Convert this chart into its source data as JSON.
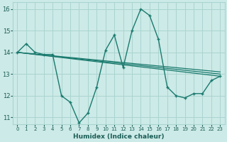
{
  "xlabel": "Humidex (Indice chaleur)",
  "xlim": [
    -0.5,
    23.5
  ],
  "ylim": [
    10.7,
    16.3
  ],
  "yticks": [
    11,
    12,
    13,
    14,
    15,
    16
  ],
  "xticks": [
    0,
    1,
    2,
    3,
    4,
    5,
    6,
    7,
    8,
    9,
    10,
    11,
    12,
    13,
    14,
    15,
    16,
    17,
    18,
    19,
    20,
    21,
    22,
    23
  ],
  "bg_color": "#cceae7",
  "grid_color": "#aad4d0",
  "line_color": "#1a7a6e",
  "main_line": {
    "x": [
      0,
      1,
      2,
      3,
      4,
      5,
      6,
      7,
      8,
      9,
      10,
      11,
      12,
      13,
      14,
      15,
      16,
      17,
      18,
      19,
      20,
      21,
      22,
      23
    ],
    "y": [
      14.0,
      14.4,
      14.0,
      13.9,
      13.9,
      12.0,
      11.7,
      10.75,
      11.2,
      12.4,
      14.1,
      14.8,
      13.3,
      15.0,
      16.0,
      15.7,
      14.6,
      12.4,
      12.0,
      11.9,
      12.1,
      12.1,
      12.7,
      12.9
    ]
  },
  "trend_lines": [
    {
      "x": [
        0,
        23
      ],
      "y": [
        14.0,
        13.1
      ]
    },
    {
      "x": [
        0,
        23
      ],
      "y": [
        14.0,
        13.0
      ]
    },
    {
      "x": [
        0,
        23
      ],
      "y": [
        14.0,
        12.9
      ]
    }
  ]
}
